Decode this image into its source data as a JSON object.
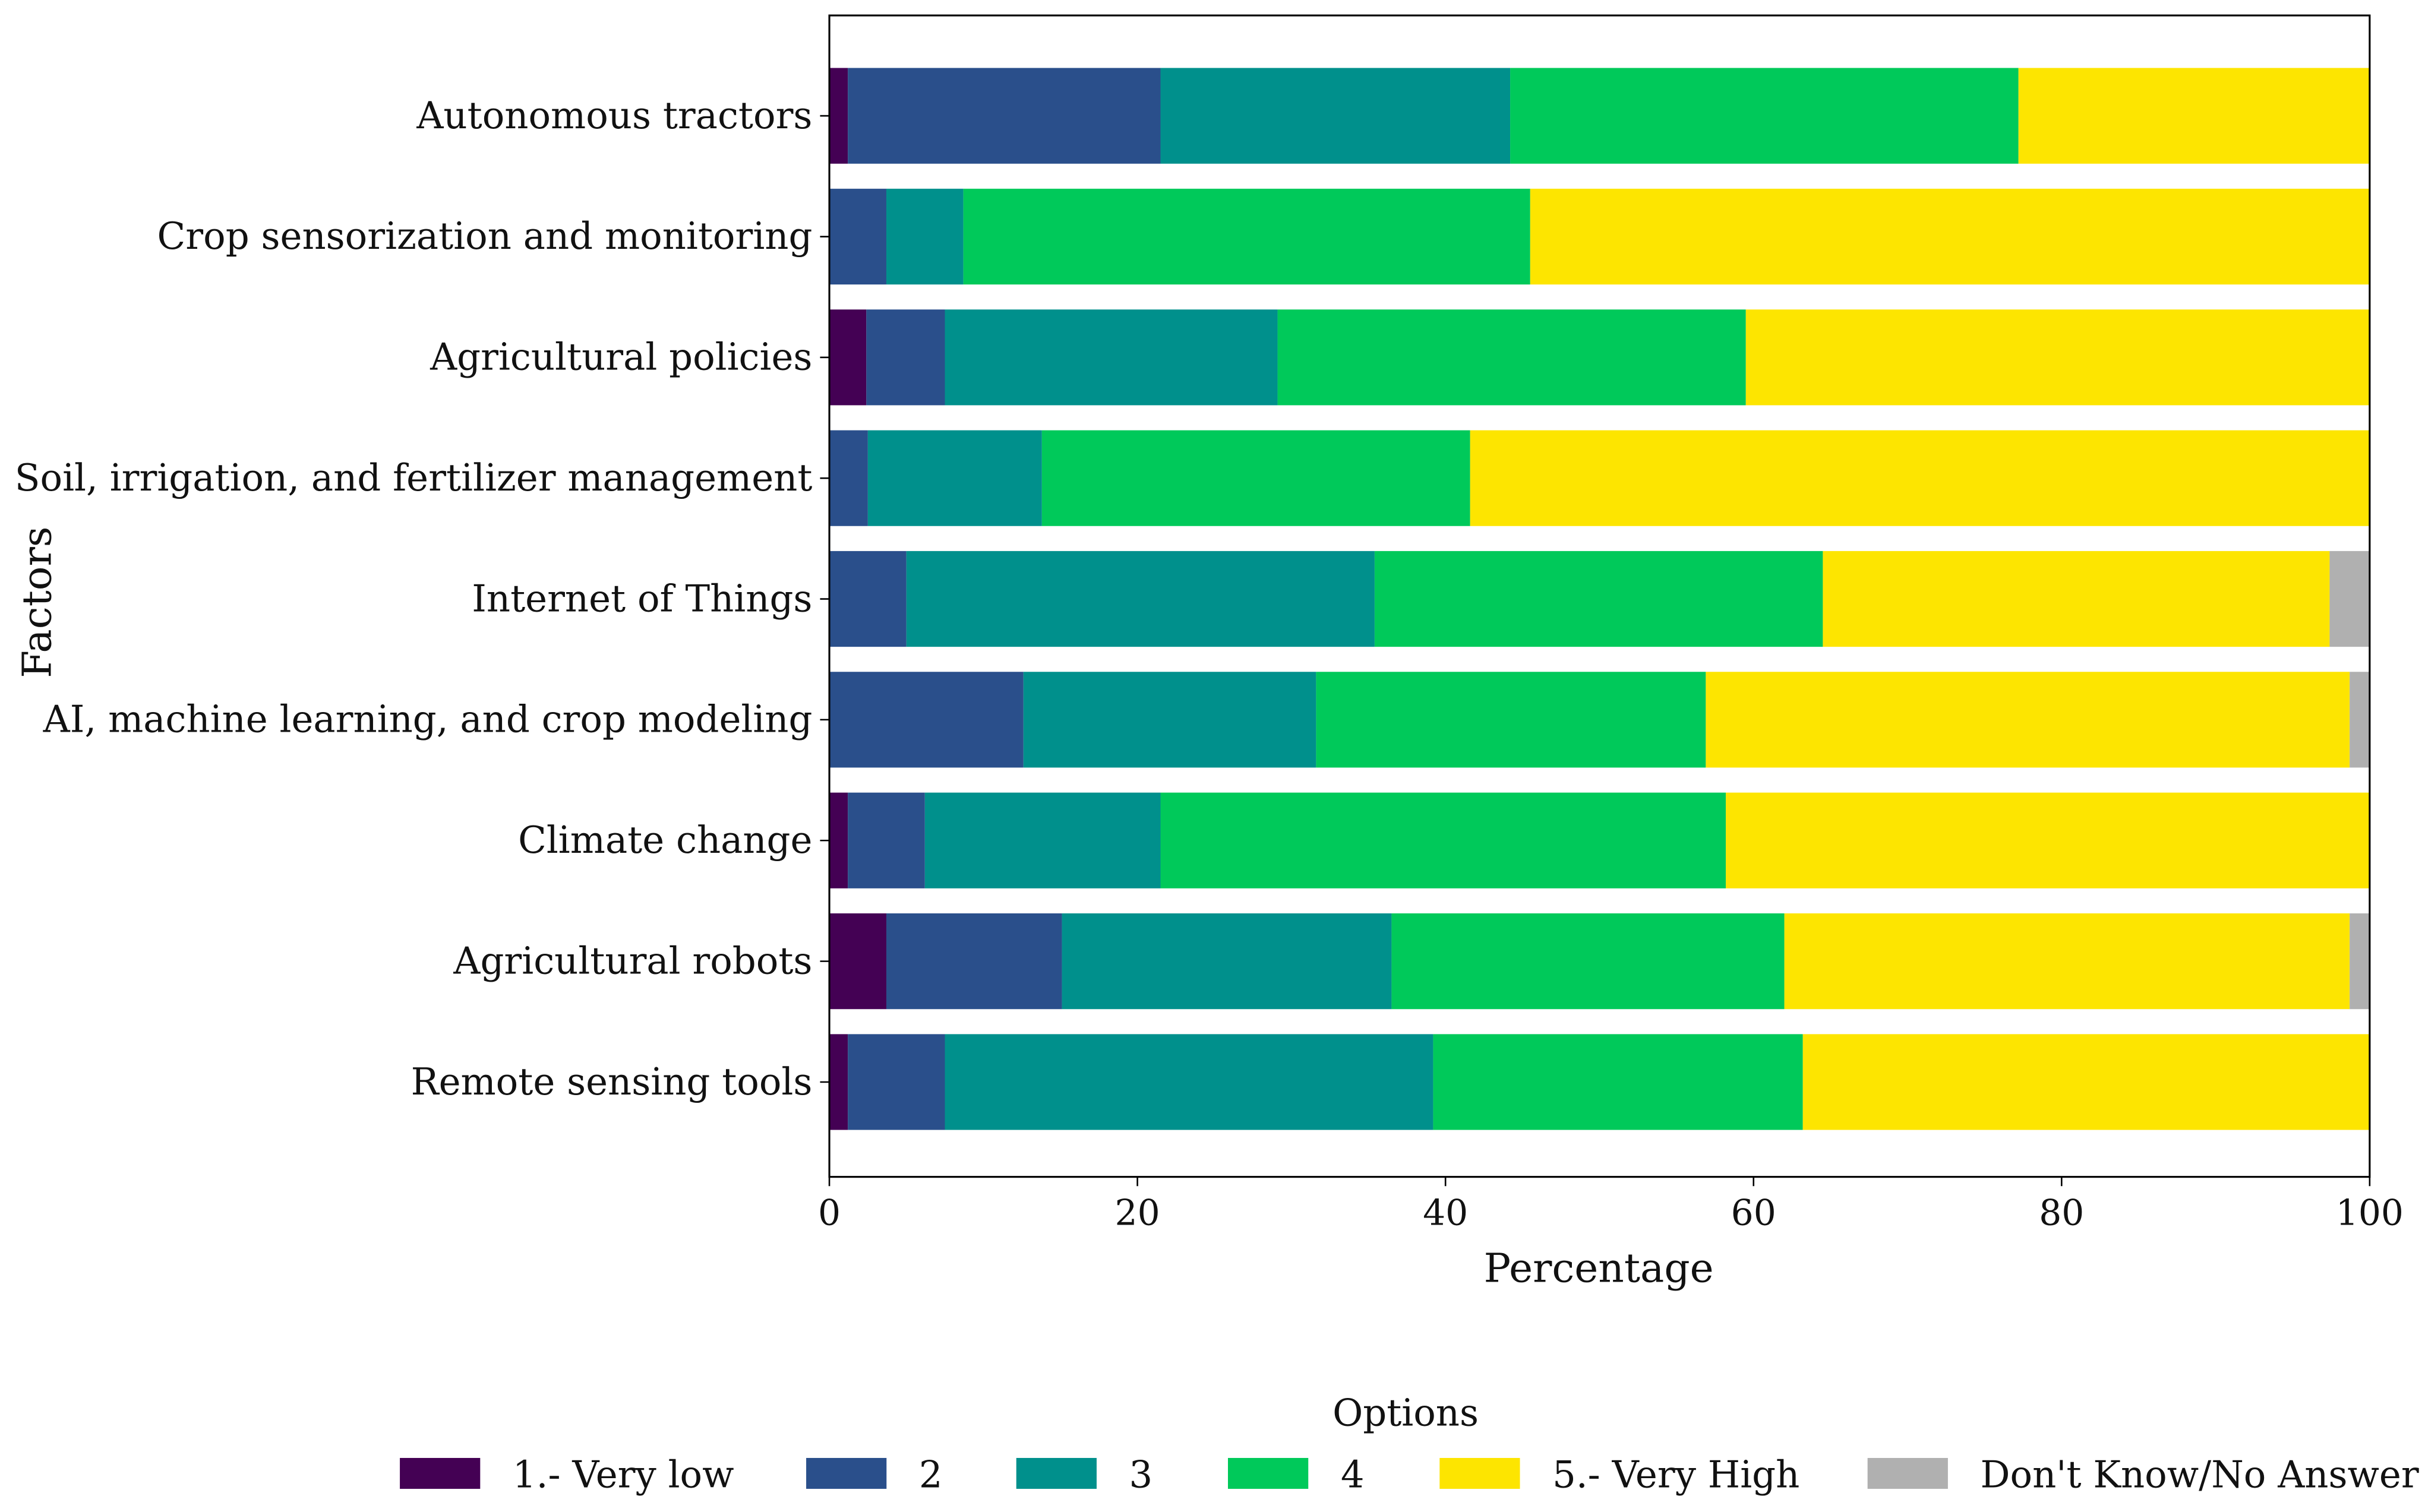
{
  "chart_data": {
    "type": "bar",
    "orientation": "horizontal",
    "stacked": true,
    "xlabel": "Percentage",
    "ylabel": "Factors",
    "xlim": [
      0,
      100
    ],
    "xticks": [
      "0",
      "20",
      "40",
      "60",
      "80",
      "100"
    ],
    "grid": false,
    "legend": {
      "title": "Options",
      "placement": "bottom-center",
      "entries": [
        "1.- Very low",
        "2",
        "3",
        "4",
        "5.- Very High",
        "Don't Know/No Answer"
      ]
    },
    "categories": [
      "Autonomous tractors",
      "Crop sensorization and monitoring",
      "Agricultural policies",
      "Soil, irrigation, and fertilizer management",
      "Internet of Things",
      "AI, machine learning, and crop modeling",
      "Climate change",
      "Agricultural robots",
      "Remote sensing tools"
    ],
    "series": [
      {
        "name": "1.- Very low",
        "color": "#440154",
        "values": [
          1.2,
          0,
          2.4,
          0,
          0,
          0,
          1.2,
          3.7,
          1.2
        ]
      },
      {
        "name": "2",
        "color": "#2a4f8b",
        "values": [
          20.3,
          3.7,
          5.1,
          2.5,
          5.0,
          12.6,
          5.0,
          11.4,
          6.3
        ]
      },
      {
        "name": "3",
        "color": "#00908c",
        "values": [
          22.7,
          5.0,
          21.6,
          11.3,
          30.4,
          19.0,
          15.3,
          21.4,
          31.7
        ]
      },
      {
        "name": "4",
        "color": "#00c95a",
        "values": [
          33.0,
          36.8,
          30.4,
          27.8,
          29.1,
          25.3,
          36.7,
          25.5,
          24.0
        ]
      },
      {
        "name": "5.- Very High",
        "color": "#fde500",
        "values": [
          22.8,
          54.5,
          40.5,
          58.4,
          32.9,
          41.8,
          41.8,
          36.7,
          36.8
        ]
      },
      {
        "name": "Don't Know/No Answer",
        "color": "#b0b0b0",
        "values": [
          0,
          0,
          0,
          0,
          2.6,
          1.3,
          0,
          1.3,
          0
        ]
      }
    ]
  }
}
